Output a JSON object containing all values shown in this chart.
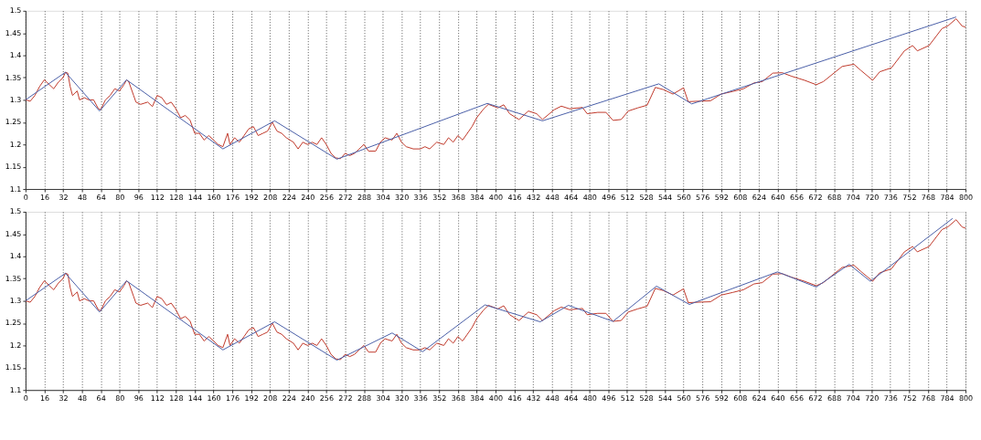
{
  "chart_data": [
    {
      "type": "line",
      "xlim": [
        0,
        800
      ],
      "ylim": [
        1.1,
        1.5
      ],
      "xticks": [
        0,
        16,
        32,
        48,
        64,
        80,
        96,
        112,
        128,
        144,
        160,
        176,
        192,
        208,
        224,
        240,
        256,
        272,
        288,
        304,
        320,
        336,
        352,
        368,
        384,
        400,
        416,
        432,
        448,
        464,
        480,
        496,
        512,
        528,
        544,
        560,
        576,
        592,
        608,
        624,
        640,
        656,
        672,
        688,
        704,
        720,
        736,
        752,
        768,
        784,
        800
      ],
      "yticks": [
        1.1,
        1.15,
        1.2,
        1.25,
        1.3,
        1.35,
        1.4,
        1.45,
        1.5
      ],
      "grid": "x",
      "legend": false,
      "series": [
        {
          "color": "#c0392b",
          "x": [
            0,
            4,
            8,
            12,
            16,
            20,
            24,
            28,
            32,
            34,
            36,
            38,
            40,
            44,
            46,
            50,
            54,
            58,
            62,
            64,
            68,
            72,
            76,
            80,
            84,
            86,
            88,
            92,
            94,
            98,
            104,
            108,
            112,
            116,
            120,
            124,
            128,
            132,
            136,
            140,
            144,
            148,
            152,
            156,
            160,
            164,
            168,
            172,
            174,
            178,
            182,
            186,
            190,
            194,
            198,
            202,
            206,
            210,
            214,
            218,
            222,
            228,
            232,
            236,
            240,
            244,
            248,
            252,
            256,
            260,
            264,
            268,
            272,
            276,
            280,
            284,
            288,
            292,
            298,
            302,
            306,
            312,
            316,
            320,
            324,
            330,
            336,
            340,
            344,
            350,
            356,
            360,
            364,
            368,
            372,
            376,
            380,
            384,
            390,
            394,
            402,
            407,
            412,
            420,
            428,
            435,
            440,
            450,
            456,
            463,
            474,
            478,
            487,
            494,
            500,
            507,
            513,
            521,
            529,
            536,
            543,
            551,
            560,
            564,
            572,
            583,
            592,
            602,
            611,
            620,
            627,
            636,
            644,
            652,
            663,
            673,
            679,
            695,
            705,
            711,
            721,
            727,
            737,
            748,
            755,
            759,
            769,
            780,
            785,
            792,
            797,
            800
          ],
          "values": [
            1.3,
            1.297,
            1.31,
            1.33,
            1.345,
            1.335,
            1.325,
            1.34,
            1.35,
            1.362,
            1.36,
            1.33,
            1.31,
            1.32,
            1.3,
            1.305,
            1.3,
            1.3,
            1.28,
            1.278,
            1.3,
            1.31,
            1.325,
            1.32,
            1.335,
            1.345,
            1.34,
            1.31,
            1.295,
            1.29,
            1.295,
            1.285,
            1.31,
            1.305,
            1.29,
            1.295,
            1.28,
            1.26,
            1.265,
            1.255,
            1.225,
            1.225,
            1.21,
            1.22,
            1.21,
            1.2,
            1.195,
            1.225,
            1.2,
            1.215,
            1.205,
            1.22,
            1.235,
            1.24,
            1.22,
            1.225,
            1.23,
            1.25,
            1.23,
            1.225,
            1.215,
            1.205,
            1.19,
            1.205,
            1.2,
            1.205,
            1.2,
            1.215,
            1.2,
            1.18,
            1.17,
            1.168,
            1.18,
            1.175,
            1.18,
            1.19,
            1.2,
            1.185,
            1.185,
            1.205,
            1.215,
            1.21,
            1.225,
            1.205,
            1.195,
            1.19,
            1.19,
            1.195,
            1.19,
            1.205,
            1.2,
            1.215,
            1.205,
            1.22,
            1.21,
            1.225,
            1.24,
            1.26,
            1.28,
            1.29,
            1.282,
            1.289,
            1.269,
            1.256,
            1.275,
            1.269,
            1.256,
            1.278,
            1.286,
            1.28,
            1.283,
            1.269,
            1.272,
            1.272,
            1.254,
            1.256,
            1.275,
            1.282,
            1.288,
            1.328,
            1.323,
            1.313,
            1.327,
            1.296,
            1.297,
            1.298,
            1.313,
            1.319,
            1.325,
            1.338,
            1.341,
            1.36,
            1.361,
            1.353,
            1.344,
            1.334,
            1.341,
            1.375,
            1.38,
            1.366,
            1.344,
            1.363,
            1.372,
            1.41,
            1.422,
            1.41,
            1.422,
            1.46,
            1.466,
            1.482,
            1.466,
            1.463
          ]
        },
        {
          "color": "#4a5fa8",
          "x": [
            0,
            34,
            63,
            86,
            168,
            212,
            265,
            393,
            440,
            539,
            567,
            792
          ],
          "values": [
            1.3,
            1.362,
            1.275,
            1.345,
            1.19,
            1.253,
            1.167,
            1.292,
            1.253,
            1.336,
            1.291,
            1.486
          ]
        }
      ]
    },
    {
      "type": "line",
      "xlim": [
        0,
        800
      ],
      "ylim": [
        1.1,
        1.5
      ],
      "xticks": [
        0,
        16,
        32,
        48,
        64,
        80,
        96,
        112,
        128,
        144,
        160,
        176,
        192,
        208,
        224,
        240,
        256,
        272,
        288,
        304,
        320,
        336,
        352,
        368,
        384,
        400,
        416,
        432,
        448,
        464,
        480,
        496,
        512,
        528,
        544,
        560,
        576,
        592,
        608,
        624,
        640,
        656,
        672,
        688,
        704,
        720,
        736,
        752,
        768,
        784,
        800
      ],
      "yticks": [
        1.1,
        1.15,
        1.2,
        1.25,
        1.3,
        1.35,
        1.4,
        1.45,
        1.5
      ],
      "grid": "x",
      "legend": false,
      "series": [
        {
          "color": "#c0392b",
          "x": [
            0,
            4,
            8,
            12,
            16,
            20,
            24,
            28,
            32,
            34,
            36,
            38,
            40,
            44,
            46,
            50,
            54,
            58,
            62,
            64,
            68,
            72,
            76,
            80,
            84,
            86,
            88,
            92,
            94,
            98,
            104,
            108,
            112,
            116,
            120,
            124,
            128,
            132,
            136,
            140,
            144,
            148,
            152,
            156,
            160,
            164,
            168,
            172,
            174,
            178,
            182,
            186,
            190,
            194,
            198,
            202,
            206,
            210,
            214,
            218,
            222,
            228,
            232,
            236,
            240,
            244,
            248,
            252,
            256,
            260,
            264,
            268,
            272,
            276,
            280,
            284,
            288,
            292,
            298,
            302,
            306,
            312,
            316,
            320,
            324,
            330,
            336,
            340,
            344,
            350,
            356,
            360,
            364,
            368,
            372,
            376,
            380,
            384,
            390,
            394,
            402,
            407,
            412,
            420,
            428,
            435,
            440,
            450,
            456,
            463,
            474,
            478,
            487,
            494,
            500,
            507,
            513,
            521,
            529,
            536,
            543,
            551,
            560,
            564,
            572,
            583,
            592,
            602,
            611,
            620,
            627,
            636,
            644,
            652,
            663,
            673,
            679,
            695,
            705,
            711,
            721,
            727,
            737,
            748,
            755,
            759,
            769,
            780,
            785,
            792,
            797,
            800
          ],
          "values": [
            1.3,
            1.297,
            1.31,
            1.33,
            1.345,
            1.335,
            1.325,
            1.34,
            1.35,
            1.362,
            1.36,
            1.33,
            1.31,
            1.32,
            1.3,
            1.305,
            1.3,
            1.3,
            1.28,
            1.278,
            1.3,
            1.31,
            1.325,
            1.32,
            1.335,
            1.345,
            1.34,
            1.31,
            1.295,
            1.29,
            1.295,
            1.285,
            1.31,
            1.305,
            1.29,
            1.295,
            1.28,
            1.26,
            1.265,
            1.255,
            1.225,
            1.225,
            1.21,
            1.22,
            1.21,
            1.2,
            1.195,
            1.225,
            1.2,
            1.215,
            1.205,
            1.22,
            1.235,
            1.24,
            1.22,
            1.225,
            1.23,
            1.25,
            1.23,
            1.225,
            1.215,
            1.205,
            1.19,
            1.205,
            1.2,
            1.205,
            1.2,
            1.215,
            1.2,
            1.18,
            1.17,
            1.168,
            1.18,
            1.175,
            1.18,
            1.19,
            1.2,
            1.185,
            1.185,
            1.205,
            1.215,
            1.21,
            1.225,
            1.205,
            1.195,
            1.19,
            1.19,
            1.195,
            1.19,
            1.205,
            1.2,
            1.215,
            1.205,
            1.22,
            1.21,
            1.225,
            1.24,
            1.26,
            1.28,
            1.29,
            1.282,
            1.289,
            1.269,
            1.256,
            1.275,
            1.269,
            1.256,
            1.278,
            1.286,
            1.28,
            1.283,
            1.269,
            1.272,
            1.272,
            1.254,
            1.256,
            1.275,
            1.282,
            1.288,
            1.328,
            1.323,
            1.313,
            1.327,
            1.296,
            1.297,
            1.298,
            1.313,
            1.319,
            1.325,
            1.338,
            1.341,
            1.36,
            1.361,
            1.353,
            1.344,
            1.334,
            1.341,
            1.375,
            1.38,
            1.366,
            1.344,
            1.363,
            1.372,
            1.41,
            1.422,
            1.41,
            1.422,
            1.46,
            1.466,
            1.482,
            1.466,
            1.463
          ]
        },
        {
          "color": "#4a5fa8",
          "x": [
            0,
            34,
            63,
            86,
            168,
            212,
            265,
            312,
            338,
            391,
            438,
            462,
            500,
            537,
            565,
            640,
            673,
            701,
            719,
            789
          ],
          "values": [
            1.3,
            1.362,
            1.275,
            1.345,
            1.19,
            1.253,
            1.167,
            1.228,
            1.186,
            1.291,
            1.253,
            1.29,
            1.254,
            1.333,
            1.292,
            1.365,
            1.331,
            1.382,
            1.344,
            1.485
          ]
        }
      ]
    }
  ]
}
